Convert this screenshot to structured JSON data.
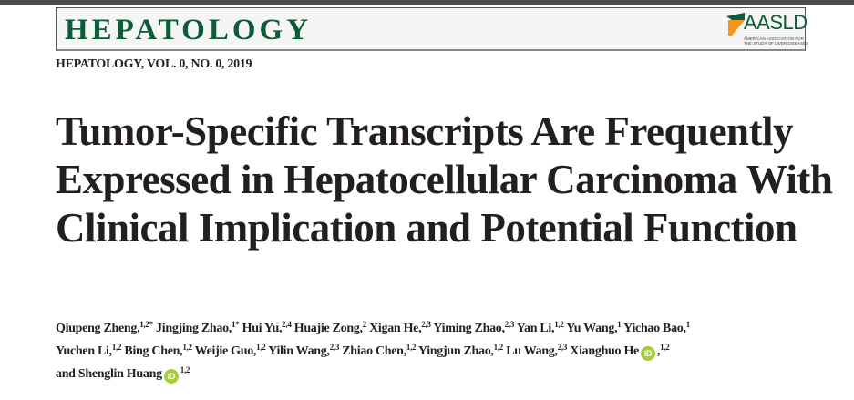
{
  "masthead": {
    "journal": "HEPATOLOGY",
    "logo_text": "AASLD",
    "logo_subtitle": "AMERICAN ASSOCIATION FOR\nTHE STUDY OF LIVER DISEASES",
    "colors": {
      "journal_green": "#0e5a3c",
      "logo_orange": "#f7941d",
      "orcid_green": "#a6ce39"
    }
  },
  "citation": "HEPATOLOGY, VOL. 0, NO. 0, 2019",
  "title": "Tumor-Specific Transcripts Are Frequently Expressed in Hepatocellular Carcinoma With Clinical Implication and Potential Function",
  "authors": [
    {
      "name": "Qiupeng Zheng,",
      "sup": "1,2*"
    },
    {
      "name": "Jingjing Zhao,",
      "sup": "1*"
    },
    {
      "name": "Hui Yu,",
      "sup": "2,4"
    },
    {
      "name": "Huajie Zong,",
      "sup": "2"
    },
    {
      "name": "Xigan He,",
      "sup": "2,3"
    },
    {
      "name": "Yiming Zhao,",
      "sup": "2,3"
    },
    {
      "name": "Yan Li,",
      "sup": "1,2"
    },
    {
      "name": "Yu Wang,",
      "sup": "1"
    },
    {
      "name": "Yichao Bao,",
      "sup": "1",
      "break": true
    },
    {
      "name": "Yuchen Li,",
      "sup": "1,2"
    },
    {
      "name": "Bing Chen,",
      "sup": "1,2"
    },
    {
      "name": "Weijie Guo,",
      "sup": "1,2"
    },
    {
      "name": "Yilin Wang,",
      "sup": "2,3"
    },
    {
      "name": "Zhiao Chen,",
      "sup": "1,2"
    },
    {
      "name": "Yingjun Zhao,",
      "sup": "1,2"
    },
    {
      "name": "Lu Wang,",
      "sup": "2,3"
    },
    {
      "name": "Xianghuo He",
      "orcid": true,
      "after": ",",
      "sup": "1,2",
      "break": true
    },
    {
      "name": "and Shenglin Huang",
      "orcid": true,
      "sup": "1,2"
    }
  ],
  "orcid_label": "iD"
}
